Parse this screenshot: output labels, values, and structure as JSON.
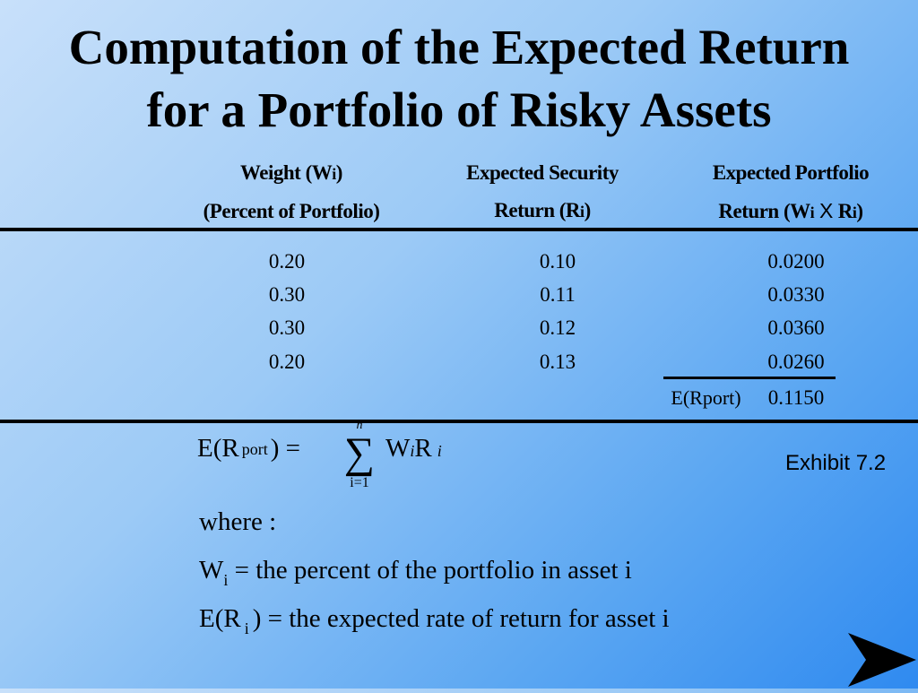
{
  "title": {
    "line1": "Computation of the Expected Return",
    "line2": "for a Portfolio of Risky Assets"
  },
  "table": {
    "headers": [
      {
        "line1": "Weight (W",
        "sub1": "i",
        "line1_end": ")",
        "line2": "(Percent of Portfolio)"
      },
      {
        "line1": "Expected Security",
        "line2": "Return (R",
        "sub2": "i",
        "line2_end": ")"
      },
      {
        "line1": "Expected Portfolio",
        "line2": "Return (W",
        "sub2a": "i",
        "times": " X ",
        "r": "R",
        "sub2b": "i",
        "line2_end": ")"
      }
    ],
    "rows": [
      [
        "0.20",
        "0.10",
        "0.0200"
      ],
      [
        "0.30",
        "0.11",
        "0.0330"
      ],
      [
        "0.30",
        "0.12",
        "0.0360"
      ],
      [
        "0.20",
        "0.13",
        "0.0260"
      ]
    ],
    "total_label": "E(Rport)",
    "total_value": "0.1150"
  },
  "formula": {
    "lhs": "E(R",
    "lhs_sub": "port",
    "lhs_end": ") =",
    "sum_symbol": "∑",
    "sum_upper": "n",
    "sum_lower": "i=1",
    "rhs": "W",
    "rhs_sub1": "i",
    "rhs_r": "R",
    "rhs_sub2": "i"
  },
  "where": {
    "label": "where :",
    "line1_var": "W",
    "line1_sub": "i",
    "line1_text": " = the percent of the portfolio in asset i",
    "line2_var": "E(R",
    "line2_sub": "i",
    "line2_text": ") = the expected rate of return for asset i"
  },
  "exhibit": "Exhibit 7.2",
  "nav": {
    "icon": "next-arrow-icon"
  }
}
